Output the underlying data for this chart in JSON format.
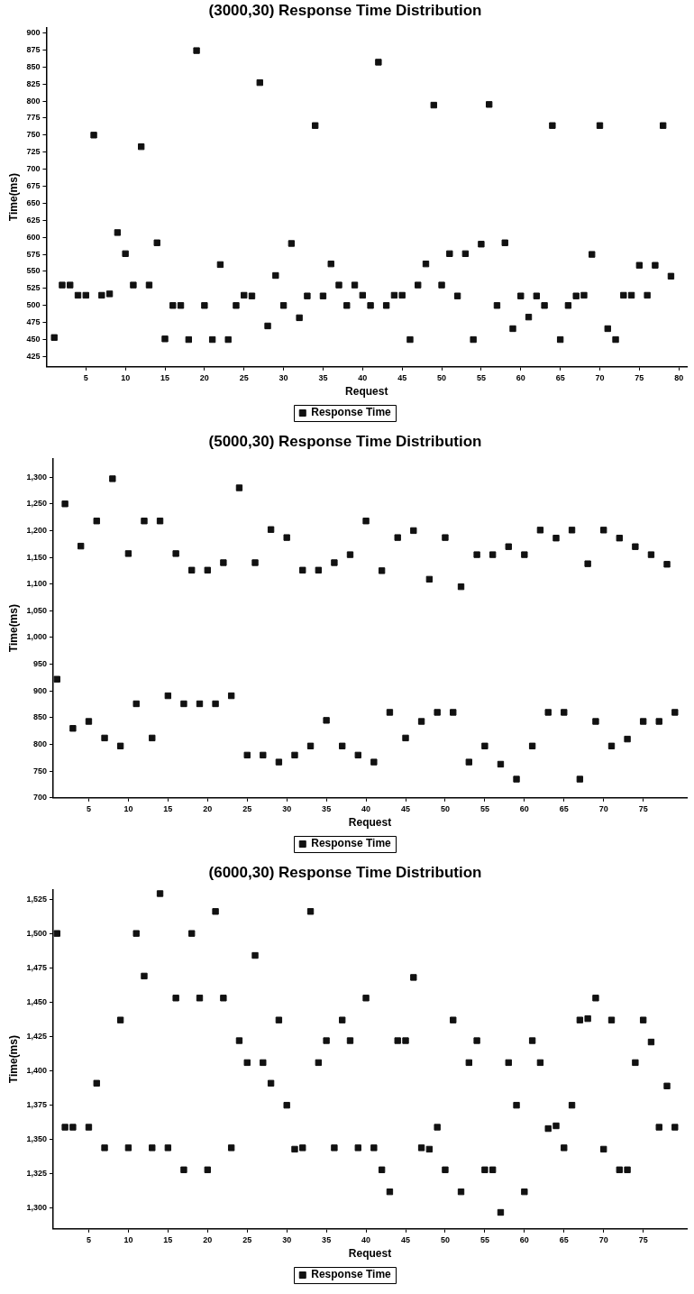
{
  "chart_data": [
    {
      "type": "scatter",
      "title": "(3000,30) Response Time Distribution",
      "xlabel": "Request",
      "ylabel": "Time(ms)",
      "legend": "bottom",
      "marker": "square",
      "grid": false,
      "x": [
        1,
        2,
        3,
        4,
        5,
        6,
        7,
        8,
        9,
        10,
        11,
        12,
        13,
        14,
        15,
        16,
        17,
        18,
        19,
        20,
        21,
        22,
        23,
        24,
        25,
        26,
        27,
        28,
        29,
        30,
        31,
        32,
        33,
        34,
        35,
        36,
        37,
        38,
        39,
        40,
        41,
        42,
        43,
        44,
        45,
        46,
        47,
        48,
        49,
        50,
        51,
        52,
        53,
        54,
        55,
        56,
        57,
        58,
        59,
        60,
        61,
        62,
        63,
        64,
        65,
        66,
        67,
        68,
        69,
        70,
        71,
        72,
        73,
        74,
        75,
        76,
        77,
        78,
        79
      ],
      "series": [
        {
          "name": "Response Time",
          "color": "#111111",
          "values": [
            453,
            530,
            530,
            515,
            515,
            750,
            515,
            517,
            607,
            576,
            530,
            733,
            530,
            592,
            451,
            500,
            500,
            450,
            874,
            500,
            450,
            560,
            450,
            500,
            515,
            514,
            827,
            470,
            544,
            500,
            591,
            482,
            514,
            764,
            514,
            561,
            530,
            500,
            530,
            515,
            500,
            857,
            500,
            515,
            515,
            450,
            530,
            561,
            794,
            530,
            576,
            514,
            576,
            450,
            590,
            795,
            500,
            592,
            466,
            514,
            483,
            514,
            500,
            764,
            450,
            500,
            514,
            515,
            575,
            764,
            466,
            450,
            515,
            515,
            559,
            515,
            559,
            764,
            543
          ]
        }
      ],
      "xlim": [
        0,
        81
      ],
      "xticks": [
        5,
        10,
        15,
        20,
        25,
        30,
        35,
        40,
        45,
        50,
        55,
        60,
        65,
        70,
        75,
        80
      ],
      "ylim": [
        410,
        908
      ],
      "yticks": [
        425,
        450,
        475,
        500,
        525,
        550,
        575,
        600,
        625,
        650,
        675,
        700,
        725,
        750,
        775,
        800,
        825,
        850,
        875,
        900
      ]
    },
    {
      "type": "scatter",
      "title": "(5000,30) Response Time Distribution",
      "xlabel": "Request",
      "ylabel": "Time(ms)",
      "legend": "bottom",
      "marker": "square",
      "grid": false,
      "x": [
        1,
        2,
        3,
        4,
        5,
        6,
        7,
        8,
        9,
        10,
        11,
        12,
        13,
        14,
        15,
        16,
        17,
        18,
        19,
        20,
        21,
        22,
        23,
        24,
        25,
        26,
        27,
        28,
        29,
        30,
        31,
        32,
        33,
        34,
        35,
        36,
        37,
        38,
        39,
        40,
        41,
        42,
        43,
        44,
        45,
        46,
        47,
        48,
        49,
        50,
        51,
        52,
        53,
        54,
        55,
        56,
        57,
        58,
        59,
        60,
        61,
        62,
        63,
        64,
        65,
        66,
        67,
        68,
        69,
        70,
        71,
        72,
        73,
        74,
        75,
        76,
        77,
        78,
        79
      ],
      "series": [
        {
          "name": "Response Time",
          "color": "#111111",
          "values": [
            922,
            1250,
            830,
            1171,
            843,
            1218,
            812,
            1297,
            797,
            1157,
            876,
            1218,
            812,
            1218,
            891,
            1157,
            876,
            1126,
            876,
            1126,
            876,
            1140,
            891,
            1280,
            780,
            1140,
            780,
            1202,
            767,
            1187,
            780,
            1126,
            797,
            1126,
            845,
            1140,
            797,
            1155,
            780,
            1218,
            767,
            1125,
            860,
            1187,
            812,
            1200,
            843,
            1109,
            860,
            1187,
            860,
            1095,
            767,
            1155,
            797,
            1155,
            763,
            1170,
            735,
            1155,
            797,
            1201,
            860,
            1186,
            860,
            1201,
            735,
            1138,
            843,
            1201,
            797,
            1186,
            810,
            1170,
            843,
            1155,
            843,
            1137,
            860
          ]
        }
      ],
      "xlim": [
        0.5,
        80.5
      ],
      "xticks": [
        5,
        10,
        15,
        20,
        25,
        30,
        35,
        40,
        45,
        50,
        55,
        60,
        65,
        70,
        75
      ],
      "ylim": [
        700,
        1335
      ],
      "yticks": [
        700,
        750,
        800,
        850,
        900,
        950,
        {
          "value": 1000,
          "label": "1,000"
        },
        {
          "value": 1050,
          "label": "1,050"
        },
        {
          "value": 1100,
          "label": "1,100"
        },
        {
          "value": 1150,
          "label": "1,150"
        },
        {
          "value": 1200,
          "label": "1,200"
        },
        {
          "value": 1250,
          "label": "1,250"
        },
        {
          "value": 1300,
          "label": "1,300"
        }
      ]
    },
    {
      "type": "scatter",
      "title": "(6000,30) Response Time Distribution",
      "xlabel": "Request",
      "ylabel": "Time(ms)",
      "legend": "bottom",
      "marker": "square",
      "grid": false,
      "x": [
        1,
        2,
        3,
        4,
        5,
        6,
        7,
        8,
        9,
        10,
        11,
        12,
        13,
        14,
        15,
        16,
        17,
        18,
        19,
        20,
        21,
        22,
        23,
        24,
        25,
        26,
        27,
        28,
        29,
        30,
        31,
        32,
        33,
        34,
        35,
        36,
        37,
        38,
        39,
        40,
        41,
        42,
        43,
        44,
        45,
        46,
        47,
        48,
        49,
        50,
        51,
        52,
        53,
        54,
        55,
        56,
        57,
        58,
        59,
        60,
        61,
        62,
        63,
        64,
        65,
        66,
        67,
        68,
        69,
        70,
        71,
        72,
        73,
        74,
        75,
        76,
        77,
        78,
        79
      ],
      "series": [
        {
          "name": "Response Time",
          "color": "#111111",
          "values": [
            1500,
            1359,
            1359,
            null,
            1359,
            1391,
            1344,
            null,
            1437,
            1344,
            1500,
            1469,
            1344,
            1529,
            1344,
            1453,
            1328,
            1500,
            1453,
            1328,
            1516,
            1453,
            1344,
            1422,
            1406,
            1484,
            1406,
            1391,
            1437,
            1375,
            1343,
            1344,
            1516,
            1406,
            1422,
            1344,
            1437,
            1422,
            1344,
            1453,
            1344,
            1328,
            1312,
            1422,
            1422,
            1468,
            1344,
            1343,
            1359,
            1328,
            1437,
            1312,
            1406,
            1422,
            1328,
            1328,
            1297,
            1406,
            1375,
            1312,
            1422,
            1406,
            1358,
            1360,
            1344,
            1375,
            1437,
            1438,
            1453,
            1343,
            1437,
            1328,
            1328,
            1406,
            1437,
            1421,
            1359,
            1389,
            1359
          ]
        }
      ],
      "xlim": [
        0.5,
        80.5
      ],
      "xticks": [
        5,
        10,
        15,
        20,
        25,
        30,
        35,
        40,
        45,
        50,
        55,
        60,
        65,
        70,
        75
      ],
      "ylim": [
        1285,
        1532
      ],
      "yticks": [
        {
          "value": 1300,
          "label": "1,300"
        },
        {
          "value": 1325,
          "label": "1,325"
        },
        {
          "value": 1350,
          "label": "1,350"
        },
        {
          "value": 1375,
          "label": "1,375"
        },
        {
          "value": 1400,
          "label": "1,400"
        },
        {
          "value": 1425,
          "label": "1,425"
        },
        {
          "value": 1450,
          "label": "1,450"
        },
        {
          "value": 1475,
          "label": "1,475"
        },
        {
          "value": 1500,
          "label": "1,500"
        },
        {
          "value": 1525,
          "label": "1,525"
        }
      ]
    }
  ]
}
